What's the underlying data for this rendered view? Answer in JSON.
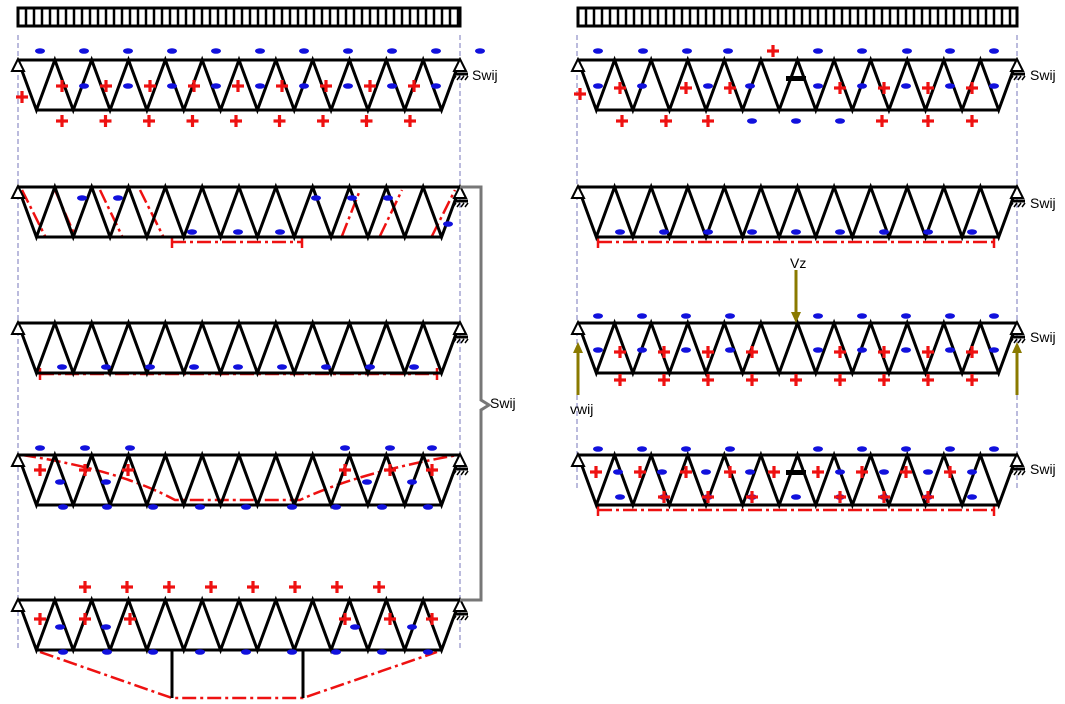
{
  "labels": {
    "support_left": "Swij",
    "brace": "Swij",
    "support_right_1": "Swij",
    "support_right_2": "Swij",
    "support_right_3": "Swij",
    "support_right_4": "Swij",
    "vz": "Vz",
    "vwij": "vwij"
  },
  "colors": {
    "member": "#000000",
    "plus": "#ee1111",
    "minus": "#1111dd",
    "envelope": "#ee1111",
    "arrow": "#8a7a00",
    "guide": "#7777bb",
    "brace": "#777777"
  },
  "icons": {
    "plus": "plus-sign-icon",
    "minus": "minus-sign-icon",
    "pin": "pin-support-icon",
    "roller": "roller-support-icon"
  }
}
